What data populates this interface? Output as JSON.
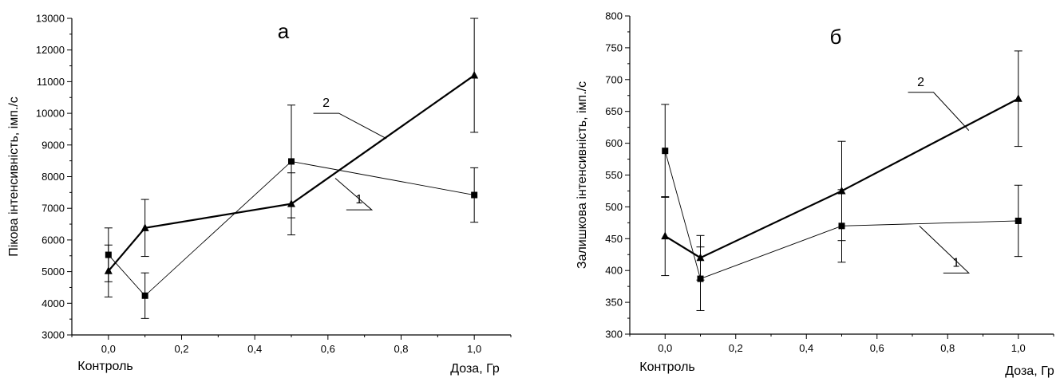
{
  "chart_data": [
    {
      "type": "line",
      "panel_label": "а",
      "ylabel": "Пікова інтенсивність, імп./с",
      "xlabel": "Доза, Гр",
      "x_extra_label": "Контроль",
      "xlim": [
        -0.1,
        1.1
      ],
      "ylim": [
        3000,
        13000
      ],
      "xticks": [
        0.0,
        0.2,
        0.4,
        0.6,
        0.8,
        1.0
      ],
      "xtick_labels": [
        "0,0",
        "0,2",
        "0,4",
        "0,6",
        "0,8",
        "1,0"
      ],
      "yticks": [
        3000,
        4000,
        5000,
        6000,
        7000,
        8000,
        9000,
        10000,
        11000,
        12000,
        13000
      ],
      "ytick_labels": [
        "3000",
        "4000",
        "5000",
        "6000",
        "7000",
        "8000",
        "9000",
        "10000",
        "11000",
        "12000",
        "13000"
      ],
      "grid": false,
      "series": [
        {
          "name": "1",
          "marker": "square",
          "line": "thin",
          "x": [
            0.0,
            0.1,
            0.5,
            1.0
          ],
          "y": [
            5530,
            4240,
            8480,
            7420
          ],
          "err": [
            850,
            720,
            1780,
            860
          ]
        },
        {
          "name": "2",
          "marker": "triangle",
          "line": "thick",
          "x": [
            0.0,
            0.1,
            0.5,
            1.0
          ],
          "y": [
            5020,
            6380,
            7140,
            11200
          ],
          "err": [
            820,
            900,
            980,
            1800
          ]
        }
      ],
      "label_positions_data": {
        "1": {
          "x": 0.7,
          "y": 6900,
          "line_from": [
            0.72,
            6950
          ],
          "line_to": [
            0.62,
            7950
          ]
        },
        "2": {
          "x": 0.68,
          "y": 10400,
          "line_from": [
            0.63,
            10000
          ],
          "line_to": [
            0.76,
            9200
          ]
        }
      }
    },
    {
      "type": "line",
      "panel_label": "б",
      "ylabel": "Залишкова інтенсивність, імп./с",
      "xlabel": "Доза, Гр",
      "x_extra_label": "Контроль",
      "xlim": [
        -0.1,
        1.1
      ],
      "ylim": [
        300,
        800
      ],
      "xticks": [
        0.0,
        0.2,
        0.4,
        0.6,
        0.8,
        1.0
      ],
      "xtick_labels": [
        "0,0",
        "0,2",
        "0,4",
        "0,6",
        "0,8",
        "1,0"
      ],
      "yticks": [
        300,
        350,
        400,
        450,
        500,
        550,
        600,
        650,
        700,
        750,
        800
      ],
      "ytick_labels": [
        "300",
        "350",
        "400",
        "450",
        "500",
        "550",
        "600",
        "650",
        "700",
        "750",
        "800"
      ],
      "grid": false,
      "series": [
        {
          "name": "1",
          "marker": "square",
          "line": "thin",
          "x": [
            0.0,
            0.1,
            0.5,
            1.0
          ],
          "y": [
            588,
            387,
            470,
            478
          ],
          "err": [
            73,
            50,
            57,
            56
          ]
        },
        {
          "name": "2",
          "marker": "triangle",
          "line": "thick",
          "x": [
            0.0,
            0.1,
            0.5,
            1.0
          ],
          "y": [
            454,
            420,
            525,
            670
          ],
          "err": [
            62,
            35,
            78,
            75
          ]
        }
      ],
      "label_positions_data": {
        "1": {
          "x": 0.84,
          "y": 405,
          "line_from": [
            0.86,
            396
          ],
          "line_to": [
            0.72,
            470
          ]
        },
        "2": {
          "x": 0.72,
          "y": 688,
          "line_from": [
            0.76,
            680
          ],
          "line_to": [
            0.86,
            620
          ]
        }
      }
    }
  ]
}
